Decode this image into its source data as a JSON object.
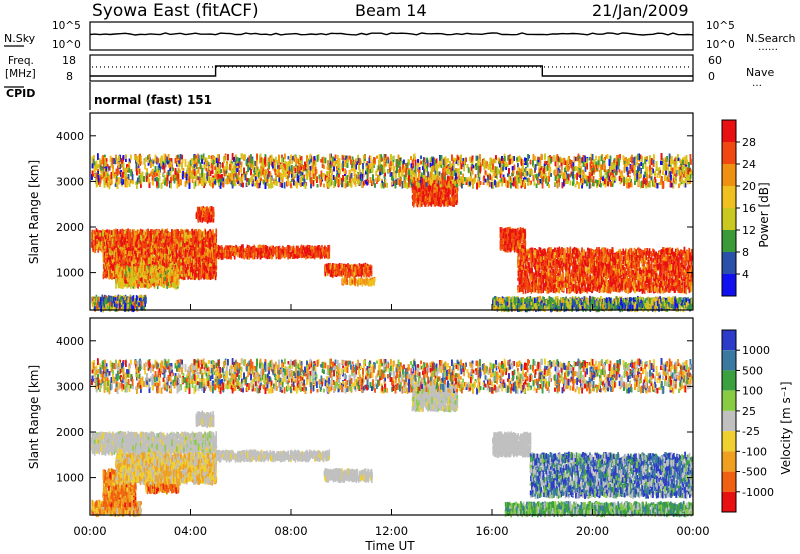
{
  "header": {
    "station": "Syowa East (fitACF)",
    "beam": "Beam 14",
    "date": "21/Jan/2009"
  },
  "panels": {
    "nsky_label": "N.Sky",
    "nsearch_label": "N.Search",
    "nsearch_dots": "……",
    "log_top": "10^5",
    "log_bottom": "10^0",
    "freq_label_line1": "Freq.",
    "freq_label_line2": "[MHz]",
    "freq_max": "18",
    "freq_min": "8",
    "nave_label": "Nave",
    "nave_dots": "…",
    "nave_max": "60",
    "nave_min": "0",
    "cpid_label": "CPID",
    "cpid_text": "normal (fast) 151"
  },
  "axes": {
    "ylabel": "Slant Range [km]",
    "xlabel": "Time UT",
    "yticks": [
      "4000",
      "3000",
      "2000",
      "1000"
    ],
    "xticks": [
      "00:00",
      "04:00",
      "08:00",
      "12:00",
      "16:00",
      "20:00",
      "00:00"
    ]
  },
  "colorbars": {
    "power": {
      "label": "Power [dB]",
      "ticks": [
        "28",
        "24",
        "20",
        "16",
        "12",
        "8",
        "4"
      ],
      "colors": [
        "#e81010",
        "#f04810",
        "#f09010",
        "#f0c020",
        "#c8c820",
        "#3a9a3a",
        "#2a50a8",
        "#1010f0"
      ]
    },
    "velocity": {
      "label": "Velocity [m s⁻¹]",
      "ticks": [
        "1000",
        "500",
        "100",
        "25",
        "-25",
        "-100",
        "-500",
        "-1000"
      ],
      "colors": [
        "#2c3cc8",
        "#3a7aa0",
        "#3aa040",
        "#88cc44",
        "#c0c0c0",
        "#f0d030",
        "#f0a020",
        "#f06010",
        "#e81010"
      ]
    }
  },
  "chart_data": [
    {
      "type": "heatmap",
      "name": "power",
      "x_range_hours": [
        0,
        24
      ],
      "y_range_km": [
        180,
        4500
      ],
      "clusters": [
        {
          "t0": 0.0,
          "t1": 2.2,
          "r0": 200,
          "r1": 450,
          "weights": [
            0,
            1,
            2,
            3,
            4,
            5,
            5,
            4
          ]
        },
        {
          "t0": 0.0,
          "t1": 5.0,
          "r0": 1500,
          "r1": 1900,
          "weights": [
            6,
            5,
            3,
            1,
            1,
            0,
            0,
            0
          ]
        },
        {
          "t0": 0.5,
          "t1": 5.0,
          "r0": 900,
          "r1": 1500,
          "weights": [
            5,
            4,
            3,
            2,
            1,
            0,
            0,
            0
          ]
        },
        {
          "t0": 1.0,
          "t1": 3.5,
          "r0": 700,
          "r1": 1100,
          "weights": [
            1,
            2,
            4,
            5,
            4,
            1,
            0,
            0
          ]
        },
        {
          "t0": 4.2,
          "t1": 4.9,
          "r0": 2150,
          "r1": 2400,
          "weights": [
            6,
            6,
            4,
            0,
            0,
            0,
            0,
            0
          ]
        },
        {
          "t0": 5.0,
          "t1": 9.5,
          "r0": 1350,
          "r1": 1550,
          "weights": [
            6,
            6,
            3,
            0,
            0,
            0,
            0,
            0
          ]
        },
        {
          "t0": 9.3,
          "t1": 11.2,
          "r0": 950,
          "r1": 1150,
          "weights": [
            6,
            6,
            3,
            1,
            0,
            0,
            0,
            0
          ]
        },
        {
          "t0": 10.0,
          "t1": 11.3,
          "r0": 750,
          "r1": 850,
          "weights": [
            0,
            2,
            4,
            3,
            0,
            0,
            0,
            0
          ]
        },
        {
          "t0": 12.8,
          "t1": 14.6,
          "r0": 2500,
          "r1": 3050,
          "weights": [
            6,
            6,
            3,
            0,
            0,
            0,
            0,
            0
          ]
        },
        {
          "t0": 16.3,
          "t1": 17.3,
          "r0": 1500,
          "r1": 1950,
          "weights": [
            6,
            5,
            2,
            0,
            0,
            0,
            0,
            0
          ]
        },
        {
          "t0": 17.0,
          "t1": 24.0,
          "r0": 600,
          "r1": 1500,
          "weights": [
            6,
            5,
            3,
            1,
            0,
            0,
            0,
            0
          ]
        },
        {
          "t0": 16.0,
          "t1": 24.0,
          "r0": 200,
          "r1": 420,
          "weights": [
            0,
            0,
            1,
            3,
            4,
            5,
            4,
            2
          ]
        },
        {
          "t0": 0.0,
          "t1": 24.0,
          "r0": 2900,
          "r1": 3550,
          "weights": [
            1,
            2,
            2,
            3,
            3,
            2,
            1,
            1
          ]
        }
      ]
    },
    {
      "type": "heatmap",
      "name": "velocity",
      "x_range_hours": [
        0,
        24
      ],
      "y_range_km": [
        180,
        4500
      ],
      "clusters": [
        {
          "t0": 0.0,
          "t1": 2.0,
          "r0": 200,
          "r1": 450,
          "weights": [
            0,
            0,
            0,
            0,
            1,
            3,
            6,
            2,
            0
          ]
        },
        {
          "t0": 0.5,
          "t1": 1.8,
          "r0": 400,
          "r1": 1150,
          "weights": [
            0,
            0,
            0,
            0,
            0,
            1,
            5,
            4,
            1
          ]
        },
        {
          "t0": 2.2,
          "t1": 3.5,
          "r0": 700,
          "r1": 1400,
          "weights": [
            0,
            0,
            0,
            0,
            0,
            1,
            4,
            6,
            2
          ]
        },
        {
          "t0": 0.0,
          "t1": 5.0,
          "r0": 1550,
          "r1": 1950,
          "weights": [
            0,
            0,
            0,
            1,
            8,
            1,
            0,
            0,
            0
          ]
        },
        {
          "t0": 1.0,
          "t1": 5.0,
          "r0": 900,
          "r1": 1500,
          "weights": [
            0,
            0,
            0,
            0,
            2,
            3,
            3,
            0,
            0
          ]
        },
        {
          "t0": 4.2,
          "t1": 4.9,
          "r0": 2150,
          "r1": 2400,
          "weights": [
            0,
            0,
            0,
            0,
            8,
            1,
            0,
            0,
            0
          ]
        },
        {
          "t0": 5.0,
          "t1": 9.5,
          "r0": 1400,
          "r1": 1550,
          "weights": [
            0,
            0,
            0,
            0,
            8,
            1,
            0,
            0,
            0
          ]
        },
        {
          "t0": 9.3,
          "t1": 11.2,
          "r0": 950,
          "r1": 1150,
          "weights": [
            0,
            0,
            0,
            0,
            8,
            1,
            0,
            0,
            0
          ]
        },
        {
          "t0": 12.8,
          "t1": 14.6,
          "r0": 2500,
          "r1": 3050,
          "weights": [
            0,
            0,
            0,
            1,
            8,
            1,
            0,
            0,
            0
          ]
        },
        {
          "t0": 16.0,
          "t1": 17.5,
          "r0": 1500,
          "r1": 1950,
          "weights": [
            0,
            0,
            0,
            0,
            8,
            0,
            0,
            0,
            0
          ]
        },
        {
          "t0": 17.5,
          "t1": 24.0,
          "r0": 600,
          "r1": 1500,
          "weights": [
            4,
            4,
            1,
            1,
            4,
            0,
            0,
            0,
            0
          ]
        },
        {
          "t0": 16.5,
          "t1": 24.0,
          "r0": 200,
          "r1": 420,
          "weights": [
            0,
            2,
            5,
            3,
            2,
            0,
            0,
            0,
            0
          ]
        },
        {
          "t0": 0.0,
          "t1": 24.0,
          "r0": 2900,
          "r1": 3550,
          "weights": [
            1,
            1,
            1,
            1,
            2,
            2,
            2,
            2,
            1
          ]
        }
      ]
    }
  ]
}
